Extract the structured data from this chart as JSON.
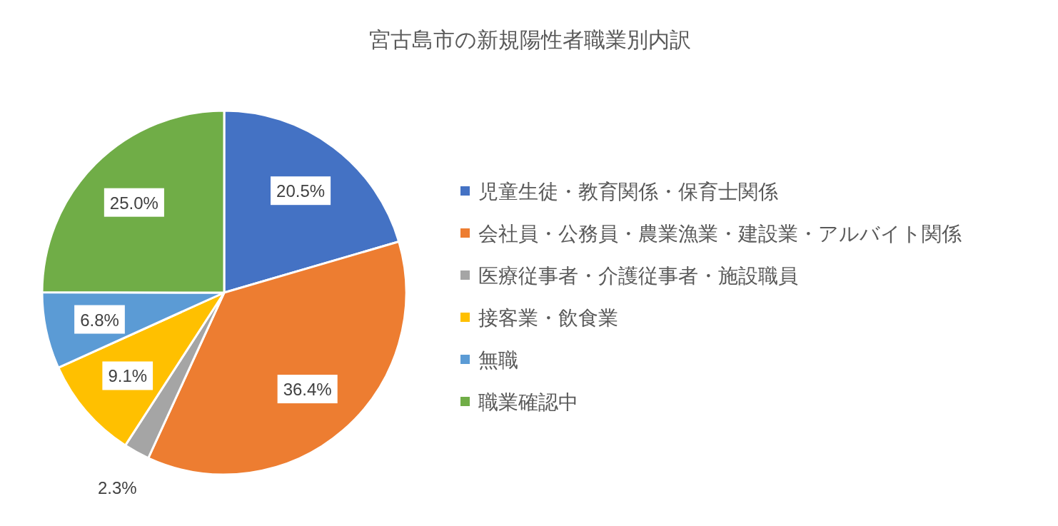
{
  "chart_data": {
    "type": "pie",
    "title": "宮古島市の新規陽性者職業別内訳",
    "categories": [
      "児童生徒・教育関係・保育士関係",
      "会社員・公務員・農業漁業・建設業・アルバイト関係",
      "医療従事者・介護従事者・施設職員",
      "接客業・飲食業",
      "無職",
      "職業確認中"
    ],
    "values": [
      20.5,
      36.4,
      2.3,
      9.1,
      6.8,
      25.0
    ],
    "value_labels": [
      "20.5%",
      "36.4%",
      "2.3%",
      "9.1%",
      "6.8%",
      "25.0%"
    ],
    "colors": [
      "#4472c4",
      "#ed7d31",
      "#a5a5a5",
      "#ffc000",
      "#5b9bd5",
      "#70ad47"
    ],
    "legend": "right"
  }
}
